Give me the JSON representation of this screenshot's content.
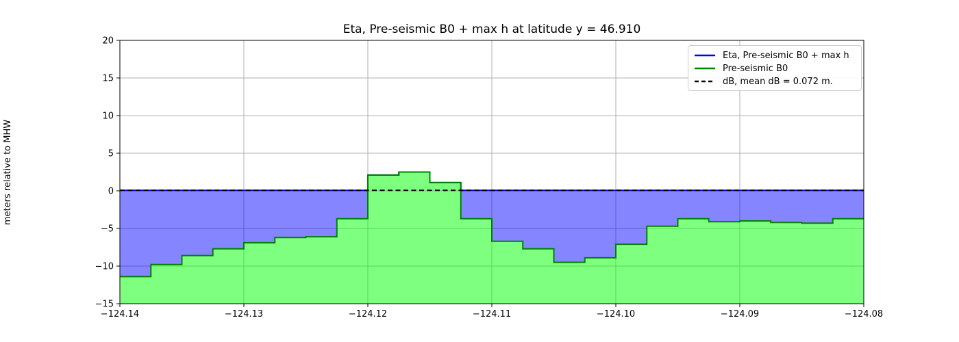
{
  "figure": {
    "title": "Eta, Pre-seismic B0 + max h at latitude y = 46.910",
    "ylabel": "meters relative to MHW"
  },
  "legend": {
    "position": "upper right",
    "entries": [
      {
        "label": "Eta, Pre-seismic B0 + max h",
        "color": "#0000ff",
        "style": "solid"
      },
      {
        "label": "Pre-seismic B0",
        "color": "#008000",
        "style": "solid"
      },
      {
        "label": "dB, mean dB = 0.072 m.",
        "color": "#000000",
        "style": "dashed"
      }
    ]
  },
  "chart_data": {
    "type": "area",
    "title": "Eta, Pre-seismic B0 + max h at latitude y = 46.910",
    "xlabel": "",
    "ylabel": "meters relative to MHW",
    "xlim": [
      -124.14,
      -124.08
    ],
    "ylim": [
      -15,
      20
    ],
    "grid": true,
    "x_start": -124.14,
    "x_step": 0.0025,
    "series": [
      {
        "name": "Pre-seismic B0",
        "style": "step",
        "values": [
          -11.4,
          -9.8,
          -8.6,
          -7.7,
          -6.9,
          -6.2,
          -6.1,
          -3.7,
          2.1,
          2.5,
          1.1,
          -3.7,
          -6.7,
          -7.7,
          -9.5,
          -8.9,
          -7.1,
          -4.7,
          -3.7,
          -4.1,
          -4.0,
          -4.2,
          -4.3,
          -3.7
        ]
      },
      {
        "name": "Eta, Pre-seismic B0 + max h",
        "style": "level-clamped-to-B0",
        "level": 0.072
      },
      {
        "name": "dB, mean dB = 0.072 m.",
        "style": "dashed-level",
        "level": 0.072
      }
    ],
    "xticks": [
      -124.14,
      -124.13,
      -124.12,
      -124.11,
      -124.1,
      -124.09,
      -124.08
    ],
    "xtick_labels": [
      "−124.14",
      "−124.13",
      "−124.12",
      "−124.11",
      "−124.10",
      "−124.09",
      "−124.08"
    ],
    "yticks": [
      -15,
      -10,
      -5,
      0,
      5,
      10,
      15,
      20
    ],
    "ytick_labels": [
      "−15",
      "−10",
      "−5",
      "0",
      "5",
      "10",
      "15",
      "20"
    ],
    "colors": {
      "b0_line": "#008000",
      "b0_fill": "rgba(0,255,0,0.5)",
      "eta_line": "#0000ff",
      "eta_fill": "rgba(0,0,255,0.48)",
      "db_line": "#000000",
      "grid": "#b0b0b0",
      "axes": "#000000",
      "tick_text": "#000000"
    }
  }
}
